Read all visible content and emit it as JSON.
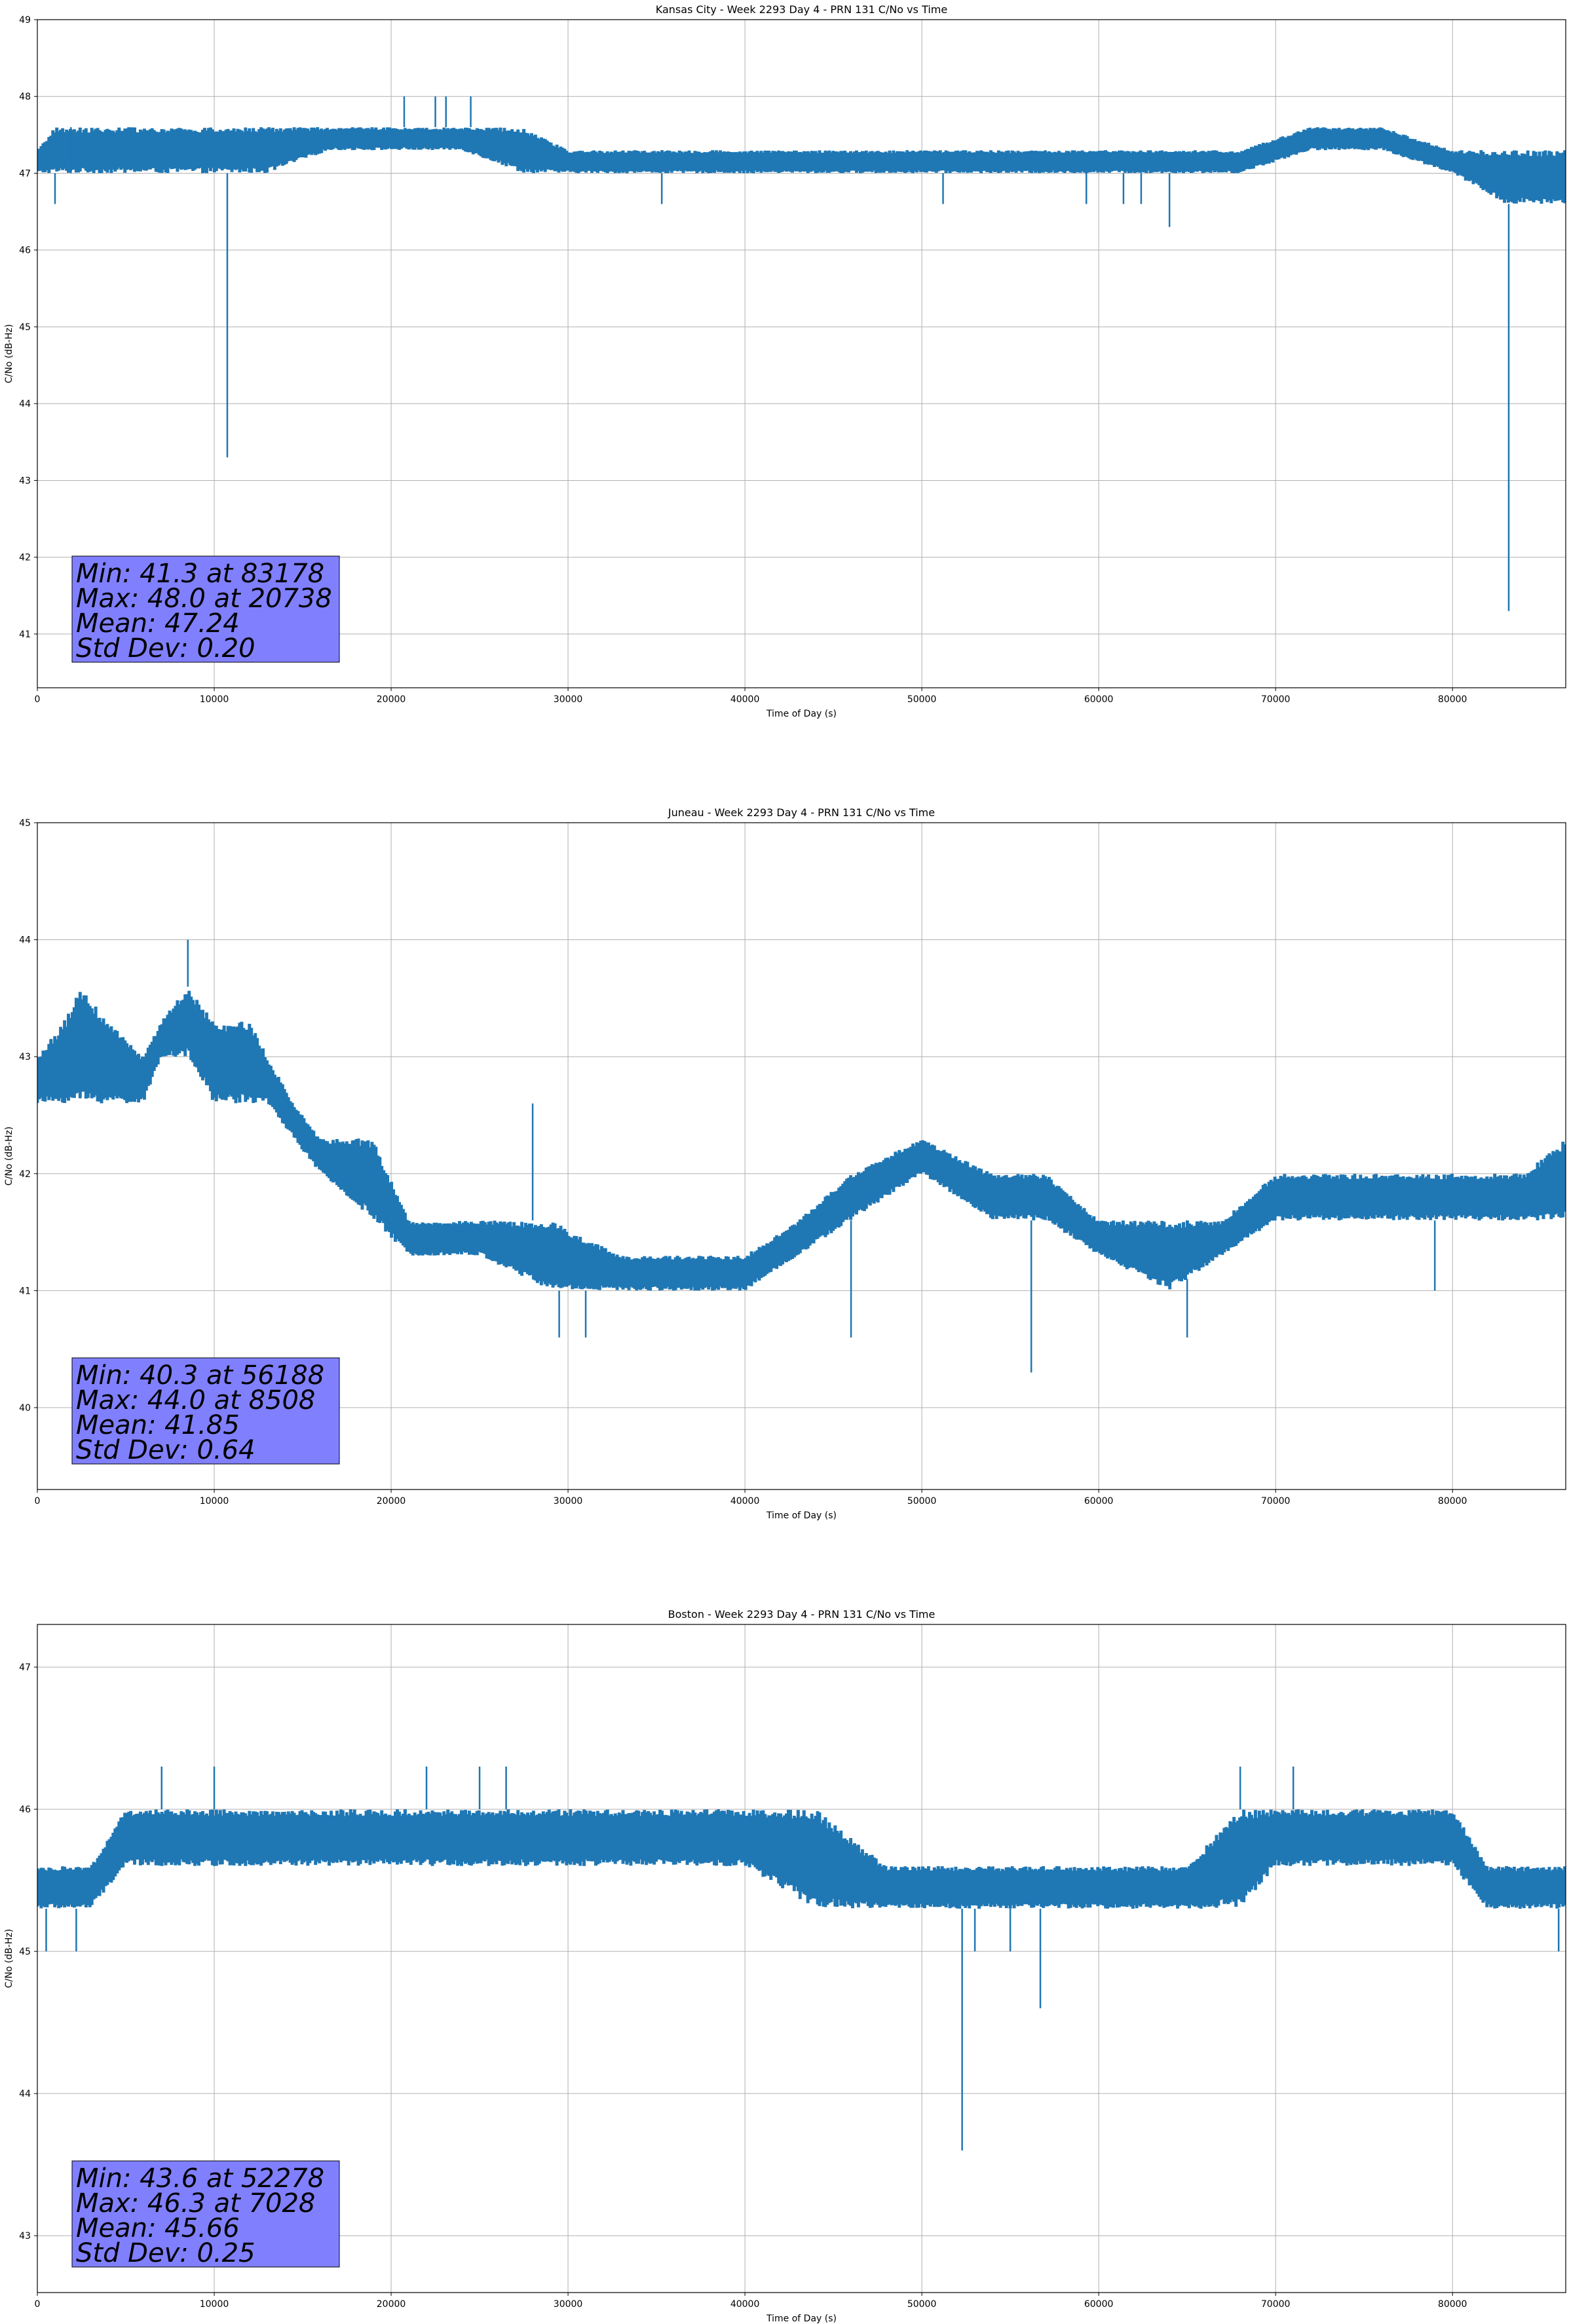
{
  "chart_data": [
    {
      "type": "line",
      "title": "Kansas City - Week 2293 Day 4 - PRN 131 C/No vs Time",
      "xlabel": "Time of Day (s)",
      "ylabel": "C/No (dB-Hz)",
      "xlim": [
        0,
        86400
      ],
      "ylim": [
        40.3,
        49
      ],
      "xticks": [
        0,
        10000,
        20000,
        30000,
        40000,
        50000,
        60000,
        70000,
        80000
      ],
      "yticks": [
        41,
        42,
        43,
        44,
        45,
        46,
        47,
        48,
        49
      ],
      "grid": true,
      "color": "#1f77b4",
      "band_points": [
        {
          "x": 0,
          "lo": 47.0,
          "hi": 47.3
        },
        {
          "x": 1000,
          "lo": 47.0,
          "hi": 47.6
        },
        {
          "x": 3000,
          "lo": 47.0,
          "hi": 47.6
        },
        {
          "x": 7000,
          "lo": 47.0,
          "hi": 47.6
        },
        {
          "x": 10000,
          "lo": 47.0,
          "hi": 47.6
        },
        {
          "x": 13000,
          "lo": 47.0,
          "hi": 47.6
        },
        {
          "x": 16500,
          "lo": 47.3,
          "hi": 47.6
        },
        {
          "x": 20000,
          "lo": 47.3,
          "hi": 47.6
        },
        {
          "x": 24000,
          "lo": 47.3,
          "hi": 47.6
        },
        {
          "x": 27500,
          "lo": 47.0,
          "hi": 47.6
        },
        {
          "x": 30000,
          "lo": 47.0,
          "hi": 47.3
        },
        {
          "x": 40000,
          "lo": 47.0,
          "hi": 47.3
        },
        {
          "x": 50000,
          "lo": 47.0,
          "hi": 47.3
        },
        {
          "x": 60000,
          "lo": 47.0,
          "hi": 47.3
        },
        {
          "x": 68000,
          "lo": 47.0,
          "hi": 47.3
        },
        {
          "x": 72000,
          "lo": 47.3,
          "hi": 47.6
        },
        {
          "x": 76000,
          "lo": 47.3,
          "hi": 47.6
        },
        {
          "x": 80000,
          "lo": 47.0,
          "hi": 47.3
        },
        {
          "x": 83000,
          "lo": 46.6,
          "hi": 47.3
        },
        {
          "x": 86400,
          "lo": 46.6,
          "hi": 47.3
        }
      ],
      "spikes": [
        {
          "x": 1000,
          "y": 46.6
        },
        {
          "x": 1900,
          "y": 47.6
        },
        {
          "x": 10738,
          "y": 43.3
        },
        {
          "x": 20738,
          "y": 48.0
        },
        {
          "x": 22500,
          "y": 48.0
        },
        {
          "x": 23100,
          "y": 48.0
        },
        {
          "x": 24500,
          "y": 48.0
        },
        {
          "x": 35300,
          "y": 46.6
        },
        {
          "x": 51200,
          "y": 46.6
        },
        {
          "x": 59300,
          "y": 46.6
        },
        {
          "x": 61400,
          "y": 46.6
        },
        {
          "x": 62400,
          "y": 46.6
        },
        {
          "x": 64000,
          "y": 46.3
        },
        {
          "x": 83178,
          "y": 41.3
        },
        {
          "x": 84200,
          "y": 46.6
        }
      ],
      "stats": [
        "Min: 41.3 at 83178",
        "Max: 48.0 at 20738",
        "Mean: 47.24",
        "Std Dev: 0.20"
      ]
    },
    {
      "type": "line",
      "title": "Juneau - Week 2293 Day 4 - PRN 131 C/No vs Time",
      "xlabel": "Time of Day (s)",
      "ylabel": "C/No (dB-Hz)",
      "xlim": [
        0,
        86400
      ],
      "ylim": [
        39.3,
        45
      ],
      "xticks": [
        0,
        10000,
        20000,
        30000,
        40000,
        50000,
        60000,
        70000,
        80000
      ],
      "yticks": [
        40,
        41,
        42,
        43,
        44,
        45
      ],
      "grid": true,
      "color": "#1f77b4",
      "band_points": [
        {
          "x": 0,
          "lo": 42.6,
          "hi": 43.0
        },
        {
          "x": 1500,
          "lo": 42.6,
          "hi": 43.3
        },
        {
          "x": 2500,
          "lo": 42.6,
          "hi": 43.6
        },
        {
          "x": 4000,
          "lo": 42.6,
          "hi": 43.3
        },
        {
          "x": 6000,
          "lo": 42.6,
          "hi": 43.0
        },
        {
          "x": 7000,
          "lo": 43.0,
          "hi": 43.3
        },
        {
          "x": 8500,
          "lo": 43.0,
          "hi": 43.6
        },
        {
          "x": 10000,
          "lo": 42.6,
          "hi": 43.3
        },
        {
          "x": 12000,
          "lo": 42.6,
          "hi": 43.3
        },
        {
          "x": 13000,
          "lo": 42.6,
          "hi": 43.0
        },
        {
          "x": 14500,
          "lo": 42.3,
          "hi": 42.6
        },
        {
          "x": 16000,
          "lo": 42.0,
          "hi": 42.3
        },
        {
          "x": 19000,
          "lo": 41.6,
          "hi": 42.3
        },
        {
          "x": 21000,
          "lo": 41.3,
          "hi": 41.6
        },
        {
          "x": 25000,
          "lo": 41.3,
          "hi": 41.6
        },
        {
          "x": 29000,
          "lo": 41.0,
          "hi": 41.6
        },
        {
          "x": 33000,
          "lo": 41.0,
          "hi": 41.3
        },
        {
          "x": 40000,
          "lo": 41.0,
          "hi": 41.3
        },
        {
          "x": 43000,
          "lo": 41.3,
          "hi": 41.6
        },
        {
          "x": 46000,
          "lo": 41.6,
          "hi": 42.0
        },
        {
          "x": 50000,
          "lo": 42.0,
          "hi": 42.3
        },
        {
          "x": 54000,
          "lo": 41.6,
          "hi": 42.0
        },
        {
          "x": 57000,
          "lo": 41.6,
          "hi": 42.0
        },
        {
          "x": 60000,
          "lo": 41.3,
          "hi": 41.6
        },
        {
          "x": 64000,
          "lo": 41.0,
          "hi": 41.6
        },
        {
          "x": 67000,
          "lo": 41.3,
          "hi": 41.6
        },
        {
          "x": 70000,
          "lo": 41.6,
          "hi": 42.0
        },
        {
          "x": 76000,
          "lo": 41.6,
          "hi": 42.0
        },
        {
          "x": 80000,
          "lo": 41.6,
          "hi": 42.0
        },
        {
          "x": 84000,
          "lo": 41.6,
          "hi": 42.0
        },
        {
          "x": 86400,
          "lo": 41.6,
          "hi": 42.3
        }
      ],
      "spikes": [
        {
          "x": 8508,
          "y": 44.0
        },
        {
          "x": 28000,
          "y": 42.6
        },
        {
          "x": 29500,
          "y": 40.6
        },
        {
          "x": 31000,
          "y": 40.6
        },
        {
          "x": 46000,
          "y": 40.6
        },
        {
          "x": 56188,
          "y": 40.3
        },
        {
          "x": 65000,
          "y": 40.6
        },
        {
          "x": 79000,
          "y": 41.0
        }
      ],
      "stats": [
        "Min: 40.3 at 56188",
        "Max: 44.0 at 8508",
        "Mean: 41.85",
        "Std Dev: 0.64"
      ]
    },
    {
      "type": "line",
      "title": "Boston - Week 2293 Day 4 - PRN 131 C/No vs Time",
      "xlabel": "Time of Day (s)",
      "ylabel": "C/No (dB-Hz)",
      "xlim": [
        0,
        86400
      ],
      "ylim": [
        42.6,
        47.3
      ],
      "xticks": [
        0,
        10000,
        20000,
        30000,
        40000,
        50000,
        60000,
        70000,
        80000
      ],
      "yticks": [
        43,
        44,
        45,
        46,
        47
      ],
      "grid": true,
      "color": "#1f77b4",
      "band_points": [
        {
          "x": 0,
          "lo": 45.3,
          "hi": 45.6
        },
        {
          "x": 3000,
          "lo": 45.3,
          "hi": 45.6
        },
        {
          "x": 5000,
          "lo": 45.6,
          "hi": 46.0
        },
        {
          "x": 10000,
          "lo": 45.6,
          "hi": 46.0
        },
        {
          "x": 20000,
          "lo": 45.6,
          "hi": 46.0
        },
        {
          "x": 30000,
          "lo": 45.6,
          "hi": 46.0
        },
        {
          "x": 40000,
          "lo": 45.6,
          "hi": 46.0
        },
        {
          "x": 44000,
          "lo": 45.3,
          "hi": 46.0
        },
        {
          "x": 48000,
          "lo": 45.3,
          "hi": 45.6
        },
        {
          "x": 55000,
          "lo": 45.3,
          "hi": 45.6
        },
        {
          "x": 65000,
          "lo": 45.3,
          "hi": 45.6
        },
        {
          "x": 68000,
          "lo": 45.3,
          "hi": 46.0
        },
        {
          "x": 70000,
          "lo": 45.6,
          "hi": 46.0
        },
        {
          "x": 80000,
          "lo": 45.6,
          "hi": 46.0
        },
        {
          "x": 82000,
          "lo": 45.3,
          "hi": 45.6
        },
        {
          "x": 86400,
          "lo": 45.3,
          "hi": 45.6
        }
      ],
      "spikes": [
        {
          "x": 500,
          "y": 45.0
        },
        {
          "x": 2200,
          "y": 45.0
        },
        {
          "x": 7028,
          "y": 46.3
        },
        {
          "x": 10000,
          "y": 46.3
        },
        {
          "x": 22000,
          "y": 46.3
        },
        {
          "x": 25000,
          "y": 46.3
        },
        {
          "x": 26500,
          "y": 46.3
        },
        {
          "x": 52278,
          "y": 43.6
        },
        {
          "x": 53000,
          "y": 45.0
        },
        {
          "x": 55000,
          "y": 45.0
        },
        {
          "x": 56700,
          "y": 44.6
        },
        {
          "x": 68000,
          "y": 46.3
        },
        {
          "x": 71000,
          "y": 46.3
        },
        {
          "x": 86000,
          "y": 45.0
        }
      ],
      "stats": [
        "Min: 43.6 at 52278",
        "Max: 46.3 at 7028",
        "Mean: 45.66",
        "Std Dev: 0.25"
      ]
    }
  ]
}
